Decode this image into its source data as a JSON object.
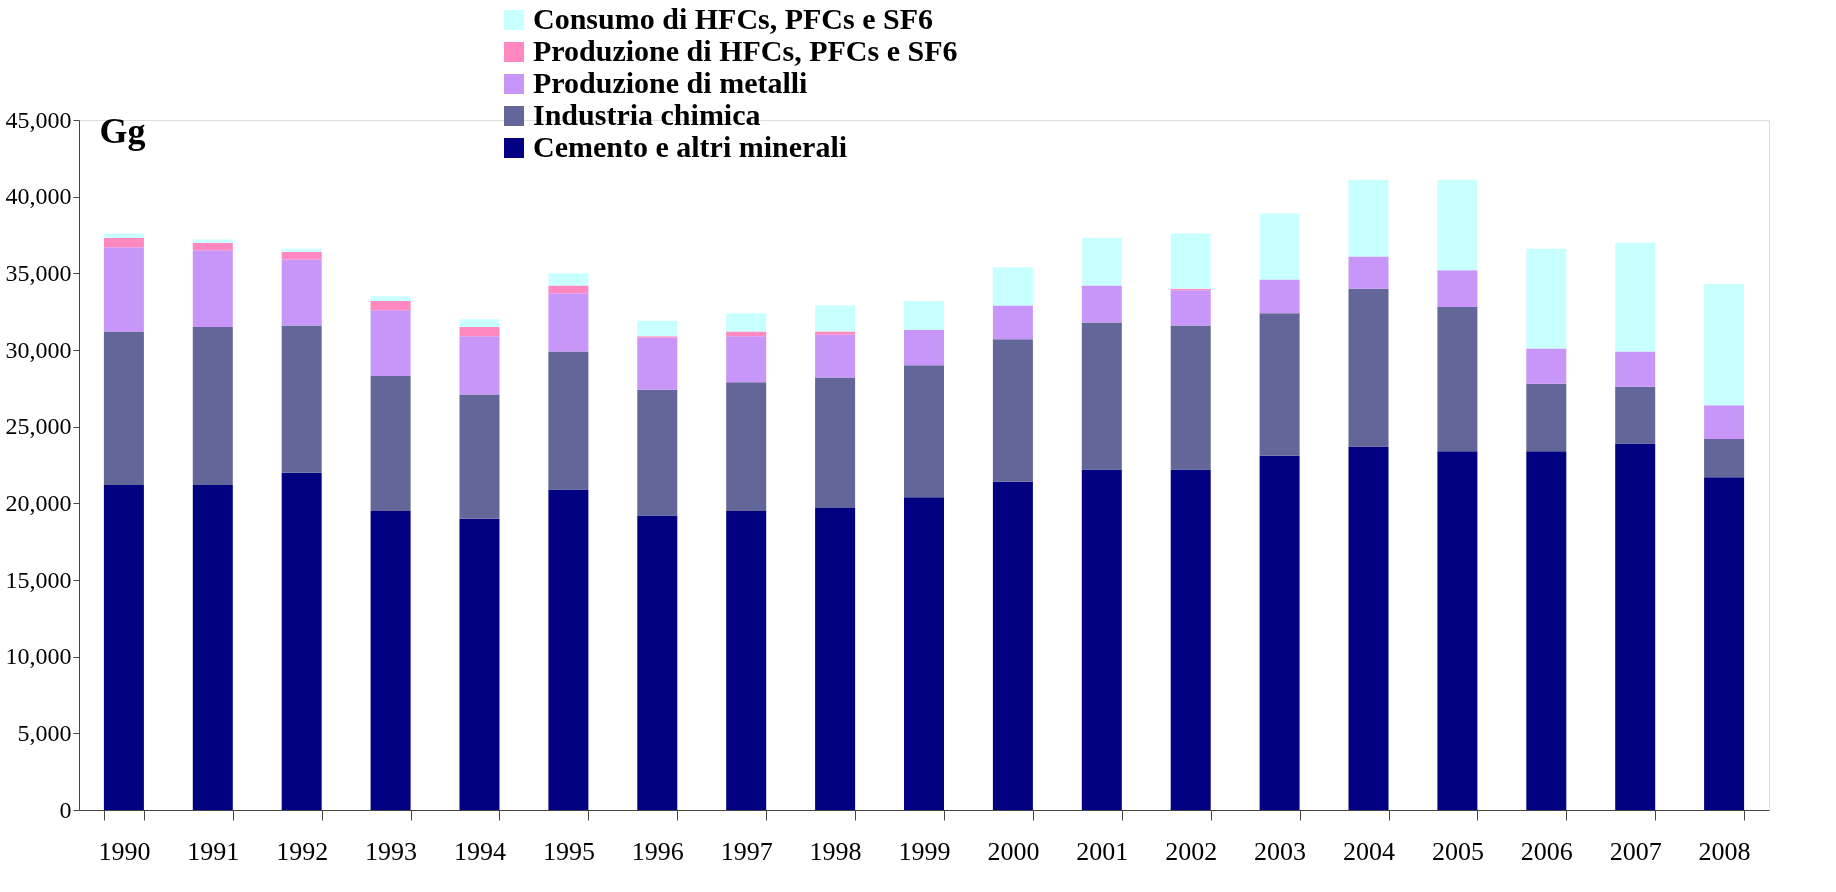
{
  "chart_data": {
    "type": "bar",
    "stacked": true,
    "ylabel": "Gg",
    "categories": [
      "1990",
      "1991",
      "1992",
      "1993",
      "1994",
      "1995",
      "1996",
      "1997",
      "1998",
      "1999",
      "2000",
      "2001",
      "2002",
      "2003",
      "2004",
      "2005",
      "2006",
      "2007",
      "2008"
    ],
    "series": [
      {
        "name": "Cemento e altri minerali",
        "color": "#000080",
        "values": [
          21200,
          21200,
          22000,
          19500,
          19000,
          20900,
          19200,
          19500,
          19700,
          20400,
          21400,
          22200,
          22200,
          23100,
          23700,
          23400,
          23400,
          23900,
          21700
        ]
      },
      {
        "name": "Industria chimica",
        "color": "#636699",
        "values": [
          10000,
          10300,
          9600,
          8800,
          8100,
          9000,
          8200,
          8400,
          8500,
          8600,
          9300,
          9600,
          9400,
          9300,
          10300,
          9400,
          4400,
          3700,
          2500
        ]
      },
      {
        "name": "Produzione di metalli",
        "color": "#c896f8",
        "values": [
          5500,
          5000,
          4300,
          4300,
          3800,
          3800,
          3400,
          3000,
          2800,
          2300,
          2200,
          2400,
          2300,
          2200,
          2100,
          2400,
          2300,
          2300,
          2200
        ]
      },
      {
        "name": "Produzione di HFCs, PFCs e SF6",
        "color": "#ff88c0",
        "values": [
          600,
          500,
          500,
          600,
          600,
          500,
          100,
          300,
          200,
          0,
          0,
          0,
          100,
          0,
          0,
          0,
          0,
          0,
          0
        ]
      },
      {
        "name": "Consumo di HFCs, PFCs e SF6",
        "color": "#c8ffff",
        "values": [
          300,
          200,
          200,
          300,
          500,
          800,
          1000,
          1200,
          1700,
          1900,
          2500,
          3100,
          3600,
          4300,
          5000,
          5900,
          6500,
          7100,
          7900
        ]
      }
    ],
    "ylim": [
      0,
      45000
    ],
    "yticks": [
      0,
      {
        "value": 5000,
        "label": "5,000"
      },
      {
        "value": 10000,
        "label": "10,000"
      },
      {
        "value": 15000,
        "label": "15,000"
      },
      {
        "value": 20000,
        "label": "20,000"
      },
      {
        "value": 25000,
        "label": "25,000"
      },
      {
        "value": 30000,
        "label": "30,000"
      },
      {
        "value": 35000,
        "label": "35,000"
      },
      {
        "value": 40000,
        "label": "40,000"
      },
      {
        "value": 45000,
        "label": "45,000"
      }
    ],
    "grid": false,
    "legend": "top"
  }
}
